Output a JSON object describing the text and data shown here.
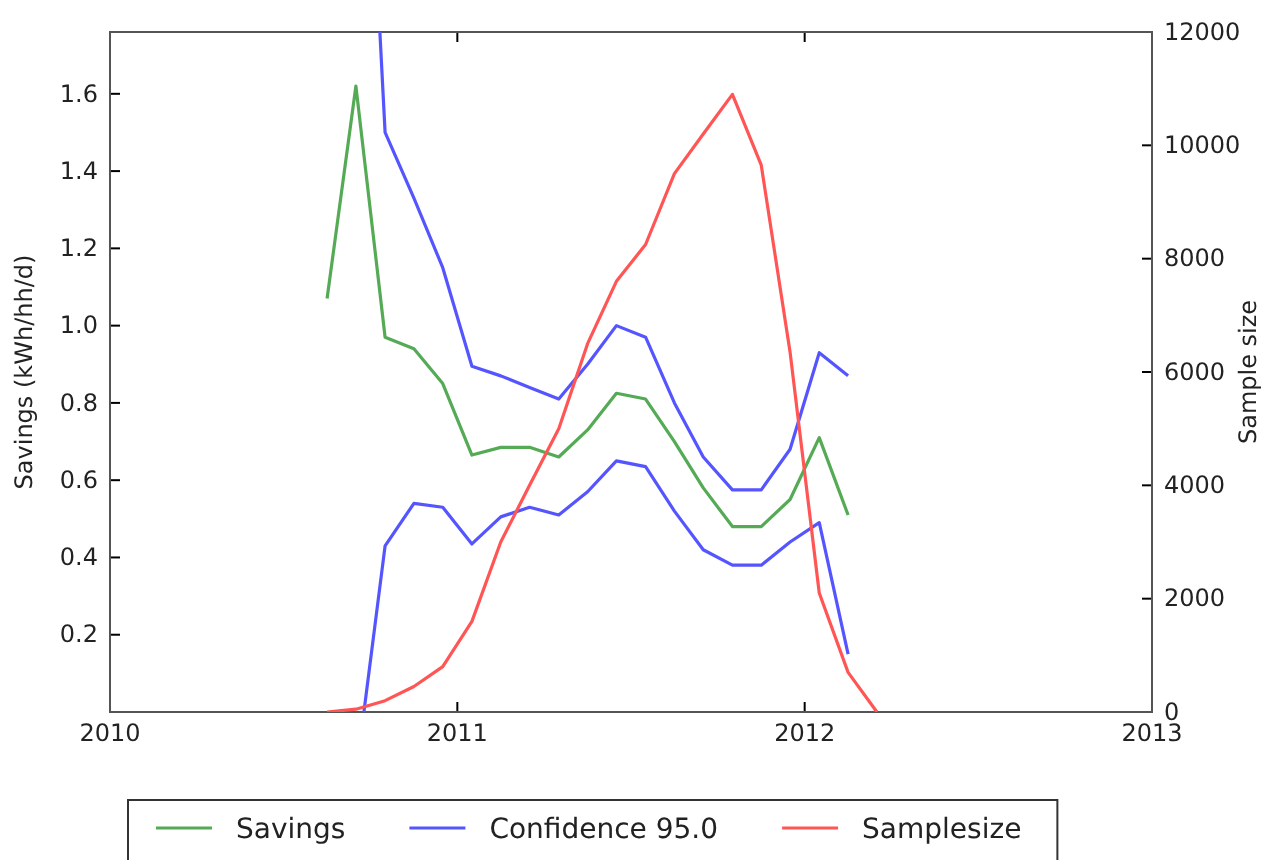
{
  "chart_data": {
    "type": "line",
    "xlabel": null,
    "ylabel": "Savings (kWh/hh/d)",
    "y2label": "Sample size",
    "xlim": [
      2010,
      2013
    ],
    "xticks": [
      2010,
      2011,
      2012,
      2013
    ],
    "ylim": [
      0,
      1.76
    ],
    "yticks": [
      0.2,
      0.4,
      0.6,
      0.8,
      {
        "value": 1,
        "label": "1.0"
      },
      1.2,
      1.4,
      1.6
    ],
    "y2lim": [
      0,
      12000
    ],
    "y2ticks": [
      0,
      2000,
      4000,
      6000,
      8000,
      10000,
      12000
    ],
    "legend": "bottom",
    "grid": false,
    "series": [
      {
        "name": "Savings",
        "color": "#55aa55",
        "x": [
          2010.625,
          2010.708,
          2010.792,
          2010.875,
          2010.958,
          2011.042,
          2011.125,
          2011.208,
          2011.292,
          2011.375,
          2011.458,
          2011.542,
          2011.625,
          2011.708,
          2011.792,
          2011.875,
          2011.958,
          2012.042,
          2012.125
        ],
        "values": [
          1.07,
          1.62,
          0.97,
          0.94,
          0.85,
          0.665,
          0.685,
          0.685,
          0.66,
          0.73,
          0.825,
          0.81,
          0.7,
          0.58,
          0.48,
          0.48,
          0.55,
          0.71,
          0.51
        ]
      },
      {
        "name": "Confidence 95.0",
        "color": "#5555ff",
        "x": [
          2010.777,
          2010.792,
          2010.875,
          2010.958,
          2011.042,
          2011.125,
          2011.208,
          2011.292,
          2011.375,
          2011.458,
          2011.542,
          2011.625,
          2011.708,
          2011.792,
          2011.875,
          2011.958,
          2012.042,
          2012.125
        ],
        "values": [
          1.76,
          1.5,
          1.33,
          1.15,
          0.895,
          0.87,
          0.84,
          0.81,
          0.9,
          1.0,
          0.97,
          0.8,
          0.66,
          0.575,
          0.575,
          0.68,
          0.93,
          0.87
        ]
      },
      {
        "color": "#5555ff",
        "x": [
          2010.731,
          2010.792,
          2010.875,
          2010.958,
          2011.042,
          2011.125,
          2011.208,
          2011.292,
          2011.375,
          2011.458,
          2011.542,
          2011.625,
          2011.708,
          2011.792,
          2011.875,
          2011.958,
          2012.042,
          2012.125
        ],
        "values": [
          0,
          0.43,
          0.54,
          0.53,
          0.435,
          0.505,
          0.53,
          0.51,
          0.57,
          0.65,
          0.635,
          0.52,
          0.42,
          0.38,
          0.38,
          0.44,
          0.49,
          0.15
        ]
      },
      {
        "name": "Samplesize",
        "color": "#ff5555",
        "axis": "y2",
        "x": [
          2010.625,
          2010.708,
          2010.792,
          2010.875,
          2010.958,
          2011.042,
          2011.125,
          2011.208,
          2011.292,
          2011.375,
          2011.458,
          2011.542,
          2011.625,
          2011.708,
          2011.792,
          2011.875,
          2011.958,
          2012.042,
          2012.125,
          2012.208
        ],
        "values": [
          0,
          50,
          200,
          450,
          800,
          1600,
          3000,
          4000,
          5000,
          6500,
          7600,
          8250,
          9500,
          10200,
          10900,
          9650,
          6350,
          2100,
          700,
          0
        ]
      }
    ]
  }
}
